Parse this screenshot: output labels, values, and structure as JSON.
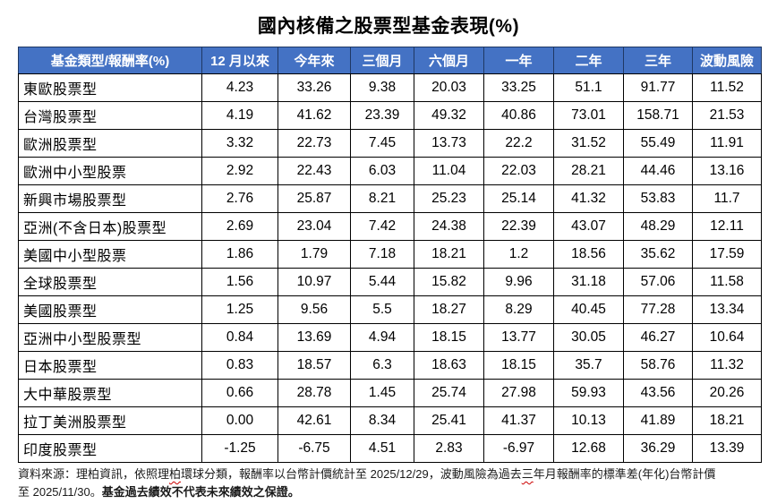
{
  "title": "國內核備之股票型基金表現(%)",
  "colors": {
    "header_bg": "#4472C4",
    "header_text": "#FFFFFF",
    "header_border": "#1F3864",
    "body_border": "#000000",
    "misspell_underline": "#CC0000"
  },
  "table": {
    "headers": [
      "基金類型/報酬率(%)",
      "12 月以來",
      "今年來",
      "三個月",
      "六個月",
      "一年",
      "二年",
      "三年",
      "波動風險"
    ],
    "rows": [
      {
        "label": "東歐股票型",
        "values": [
          "4.23",
          "33.26",
          "9.38",
          "20.03",
          "33.25",
          "51.1",
          "91.77",
          "11.52"
        ]
      },
      {
        "label": "台灣股票型",
        "values": [
          "4.19",
          "41.62",
          "23.39",
          "49.32",
          "40.86",
          "73.01",
          "158.71",
          "21.53"
        ]
      },
      {
        "label": "歐洲股票型",
        "values": [
          "3.32",
          "22.73",
          "7.45",
          "13.73",
          "22.2",
          "31.52",
          "55.49",
          "11.91"
        ]
      },
      {
        "label": "歐洲中小型股票",
        "values": [
          "2.92",
          "22.43",
          "6.03",
          "11.04",
          "22.03",
          "28.21",
          "44.46",
          "13.16"
        ]
      },
      {
        "label": "新興市場股票型",
        "values": [
          "2.76",
          "25.87",
          "8.21",
          "25.23",
          "25.14",
          "41.32",
          "53.83",
          "11.7"
        ]
      },
      {
        "label": "亞洲(不含日本)股票型",
        "values": [
          "2.69",
          "23.04",
          "7.42",
          "24.38",
          "22.39",
          "43.07",
          "48.29",
          "12.11"
        ]
      },
      {
        "label": "美國中小型股票",
        "values": [
          "1.86",
          "1.79",
          "7.18",
          "18.21",
          "1.2",
          "18.56",
          "35.62",
          "17.59"
        ]
      },
      {
        "label": "全球股票型",
        "values": [
          "1.56",
          "10.97",
          "5.44",
          "15.82",
          "9.96",
          "31.18",
          "57.06",
          "11.58"
        ]
      },
      {
        "label": "美國股票型",
        "values": [
          "1.25",
          "9.56",
          "5.5",
          "18.27",
          "8.29",
          "40.45",
          "77.28",
          "13.34"
        ]
      },
      {
        "label": "亞洲中小型股票型",
        "values": [
          "0.84",
          "13.69",
          "4.94",
          "18.15",
          "13.77",
          "30.05",
          "46.27",
          "10.64"
        ]
      },
      {
        "label": "日本股票型",
        "values": [
          "0.83",
          "18.57",
          "6.3",
          "18.63",
          "18.15",
          "35.7",
          "58.76",
          "11.32"
        ]
      },
      {
        "label": "大中華股票型",
        "values": [
          "0.66",
          "28.78",
          "1.45",
          "25.74",
          "27.98",
          "59.93",
          "43.56",
          "20.26"
        ]
      },
      {
        "label": "拉丁美洲股票型",
        "values": [
          "0.00",
          "42.61",
          "8.34",
          "25.41",
          "41.37",
          "10.13",
          "41.89",
          "18.21"
        ]
      },
      {
        "label": "印度股票型",
        "values": [
          "-1.25",
          "-6.75",
          "4.51",
          "2.83",
          "-6.97",
          "12.68",
          "36.29",
          "13.39"
        ]
      }
    ]
  },
  "footer": {
    "lines": [
      [
        {
          "text": "資料來源：理柏資訊，依照理",
          "style": "normal"
        },
        {
          "text": "柏",
          "style": "misspell"
        },
        {
          "text": "環球分類，報酬率以台幣計價統計至 2025/12/29，波動風險為過去",
          "style": "normal"
        },
        {
          "text": "三",
          "style": "misspell"
        },
        {
          "text": "年月報酬率的標準差(年化)台幣計價",
          "style": "normal"
        }
      ],
      [
        {
          "text": "至 2025/11/30。",
          "style": "normal"
        },
        {
          "text": "基金過去績效不代表未來績效之保證。",
          "style": "bold"
        }
      ]
    ]
  }
}
